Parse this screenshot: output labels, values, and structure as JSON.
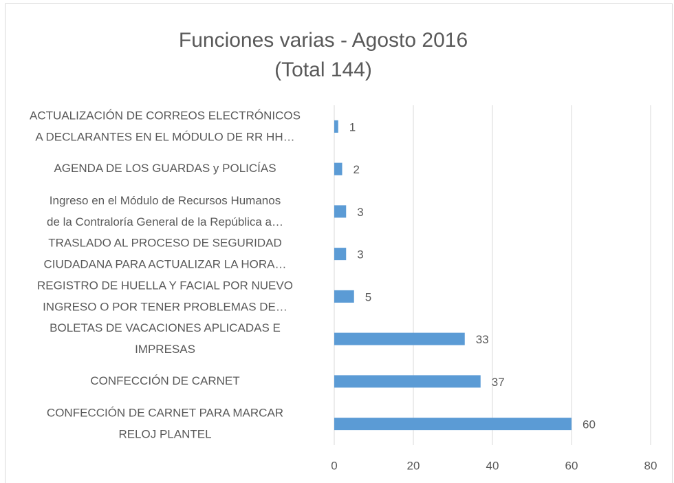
{
  "chart_data": {
    "type": "bar",
    "orientation": "horizontal",
    "title": "Funciones varias - Agosto 2016",
    "subtitle": "(Total 144)",
    "categories": [
      [
        "ACTUALIZACIÓN DE CORREOS ELECTRÓNICOS",
        "A DECLARANTES EN EL MÓDULO DE RR HH…"
      ],
      [
        "AGENDA DE LOS GUARDAS y  POLICÍAS"
      ],
      [
        "Ingreso en el Módulo de Recursos Humanos",
        "de la Contraloría General de la República  a…"
      ],
      [
        "TRASLADO AL  PROCESO DE SEGURIDAD",
        "CIUDADANA PARA ACTUALIZAR LA HORA…"
      ],
      [
        "REGISTRO DE HUELLA Y FACIAL POR NUEVO",
        "INGRESO O POR TENER PROBLEMAS DE…"
      ],
      [
        "BOLETAS DE VACACIONES APLICADAS E",
        "IMPRESAS"
      ],
      [
        "CONFECCIÓN DE CARNET"
      ],
      [
        "CONFECCIÓN DE CARNET PARA MARCAR",
        "RELOJ PLANTEL"
      ]
    ],
    "values": [
      1,
      2,
      3,
      3,
      5,
      33,
      37,
      60
    ],
    "color": "#5b9bd5",
    "xlim": [
      0,
      80
    ],
    "xticks": [
      0,
      20,
      40,
      60,
      80
    ],
    "grid": true
  }
}
